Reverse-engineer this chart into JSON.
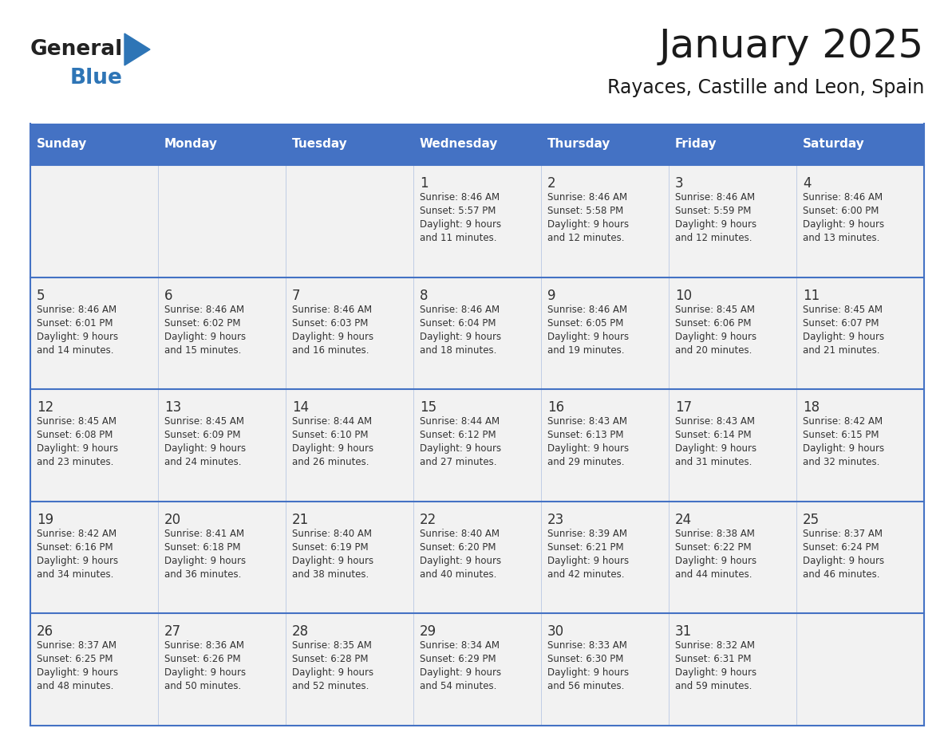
{
  "title": "January 2025",
  "subtitle": "Rayaces, Castille and Leon, Spain",
  "header_bg": "#4472C4",
  "header_text_color": "#FFFFFF",
  "header_days": [
    "Sunday",
    "Monday",
    "Tuesday",
    "Wednesday",
    "Thursday",
    "Friday",
    "Saturday"
  ],
  "cell_bg": "#F2F2F2",
  "grid_line_color": "#4472C4",
  "text_color": "#333333",
  "day_num_color": "#333333",
  "general_text": "General",
  "blue_text": "Blue",
  "logo_general_color": "#222222",
  "logo_blue_color": "#2E75B6",
  "logo_triangle_color": "#2E75B6",
  "weeks": [
    [
      {
        "day": "",
        "sunrise": "",
        "sunset": "",
        "daylight": ""
      },
      {
        "day": "",
        "sunrise": "",
        "sunset": "",
        "daylight": ""
      },
      {
        "day": "",
        "sunrise": "",
        "sunset": "",
        "daylight": ""
      },
      {
        "day": "1",
        "sunrise": "8:46 AM",
        "sunset": "5:57 PM",
        "daylight": "9 hours\nand 11 minutes."
      },
      {
        "day": "2",
        "sunrise": "8:46 AM",
        "sunset": "5:58 PM",
        "daylight": "9 hours\nand 12 minutes."
      },
      {
        "day": "3",
        "sunrise": "8:46 AM",
        "sunset": "5:59 PM",
        "daylight": "9 hours\nand 12 minutes."
      },
      {
        "day": "4",
        "sunrise": "8:46 AM",
        "sunset": "6:00 PM",
        "daylight": "9 hours\nand 13 minutes."
      }
    ],
    [
      {
        "day": "5",
        "sunrise": "8:46 AM",
        "sunset": "6:01 PM",
        "daylight": "9 hours\nand 14 minutes."
      },
      {
        "day": "6",
        "sunrise": "8:46 AM",
        "sunset": "6:02 PM",
        "daylight": "9 hours\nand 15 minutes."
      },
      {
        "day": "7",
        "sunrise": "8:46 AM",
        "sunset": "6:03 PM",
        "daylight": "9 hours\nand 16 minutes."
      },
      {
        "day": "8",
        "sunrise": "8:46 AM",
        "sunset": "6:04 PM",
        "daylight": "9 hours\nand 18 minutes."
      },
      {
        "day": "9",
        "sunrise": "8:46 AM",
        "sunset": "6:05 PM",
        "daylight": "9 hours\nand 19 minutes."
      },
      {
        "day": "10",
        "sunrise": "8:45 AM",
        "sunset": "6:06 PM",
        "daylight": "9 hours\nand 20 minutes."
      },
      {
        "day": "11",
        "sunrise": "8:45 AM",
        "sunset": "6:07 PM",
        "daylight": "9 hours\nand 21 minutes."
      }
    ],
    [
      {
        "day": "12",
        "sunrise": "8:45 AM",
        "sunset": "6:08 PM",
        "daylight": "9 hours\nand 23 minutes."
      },
      {
        "day": "13",
        "sunrise": "8:45 AM",
        "sunset": "6:09 PM",
        "daylight": "9 hours\nand 24 minutes."
      },
      {
        "day": "14",
        "sunrise": "8:44 AM",
        "sunset": "6:10 PM",
        "daylight": "9 hours\nand 26 minutes."
      },
      {
        "day": "15",
        "sunrise": "8:44 AM",
        "sunset": "6:12 PM",
        "daylight": "9 hours\nand 27 minutes."
      },
      {
        "day": "16",
        "sunrise": "8:43 AM",
        "sunset": "6:13 PM",
        "daylight": "9 hours\nand 29 minutes."
      },
      {
        "day": "17",
        "sunrise": "8:43 AM",
        "sunset": "6:14 PM",
        "daylight": "9 hours\nand 31 minutes."
      },
      {
        "day": "18",
        "sunrise": "8:42 AM",
        "sunset": "6:15 PM",
        "daylight": "9 hours\nand 32 minutes."
      }
    ],
    [
      {
        "day": "19",
        "sunrise": "8:42 AM",
        "sunset": "6:16 PM",
        "daylight": "9 hours\nand 34 minutes."
      },
      {
        "day": "20",
        "sunrise": "8:41 AM",
        "sunset": "6:18 PM",
        "daylight": "9 hours\nand 36 minutes."
      },
      {
        "day": "21",
        "sunrise": "8:40 AM",
        "sunset": "6:19 PM",
        "daylight": "9 hours\nand 38 minutes."
      },
      {
        "day": "22",
        "sunrise": "8:40 AM",
        "sunset": "6:20 PM",
        "daylight": "9 hours\nand 40 minutes."
      },
      {
        "day": "23",
        "sunrise": "8:39 AM",
        "sunset": "6:21 PM",
        "daylight": "9 hours\nand 42 minutes."
      },
      {
        "day": "24",
        "sunrise": "8:38 AM",
        "sunset": "6:22 PM",
        "daylight": "9 hours\nand 44 minutes."
      },
      {
        "day": "25",
        "sunrise": "8:37 AM",
        "sunset": "6:24 PM",
        "daylight": "9 hours\nand 46 minutes."
      }
    ],
    [
      {
        "day": "26",
        "sunrise": "8:37 AM",
        "sunset": "6:25 PM",
        "daylight": "9 hours\nand 48 minutes."
      },
      {
        "day": "27",
        "sunrise": "8:36 AM",
        "sunset": "6:26 PM",
        "daylight": "9 hours\nand 50 minutes."
      },
      {
        "day": "28",
        "sunrise": "8:35 AM",
        "sunset": "6:28 PM",
        "daylight": "9 hours\nand 52 minutes."
      },
      {
        "day": "29",
        "sunrise": "8:34 AM",
        "sunset": "6:29 PM",
        "daylight": "9 hours\nand 54 minutes."
      },
      {
        "day": "30",
        "sunrise": "8:33 AM",
        "sunset": "6:30 PM",
        "daylight": "9 hours\nand 56 minutes."
      },
      {
        "day": "31",
        "sunrise": "8:32 AM",
        "sunset": "6:31 PM",
        "daylight": "9 hours\nand 59 minutes."
      },
      {
        "day": "",
        "sunrise": "",
        "sunset": "",
        "daylight": ""
      }
    ]
  ]
}
